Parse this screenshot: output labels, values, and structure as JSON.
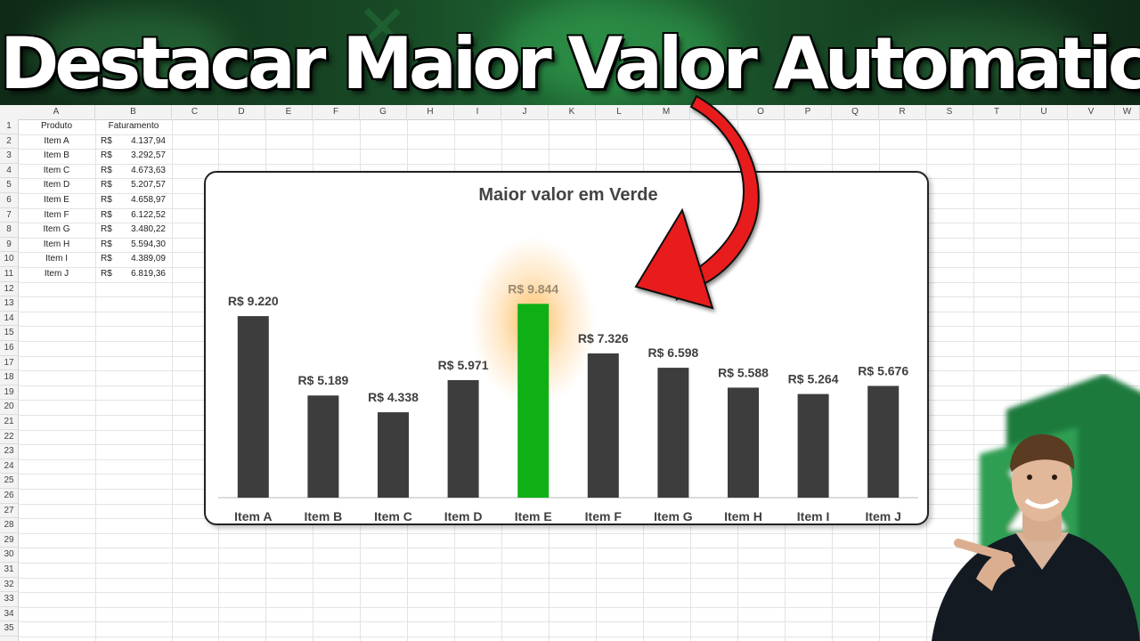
{
  "headline": "Destacar Maior Valor Automatico",
  "sheet": {
    "columns": [
      "A",
      "B",
      "C",
      "D",
      "E",
      "F",
      "G",
      "H",
      "I",
      "J",
      "K",
      "L",
      "M",
      "N",
      "O",
      "P",
      "Q",
      "R",
      "S",
      "T",
      "U",
      "V",
      "W"
    ],
    "rows": [
      "1",
      "2",
      "3",
      "4",
      "5",
      "6",
      "7",
      "8",
      "9",
      "10",
      "11",
      "12",
      "13",
      "14",
      "15",
      "16",
      "17",
      "18",
      "19",
      "20",
      "21",
      "22",
      "23",
      "24",
      "25",
      "26",
      "27",
      "28",
      "29",
      "30",
      "31",
      "32",
      "33",
      "34",
      "35"
    ],
    "header_product": "Produto",
    "header_revenue": "Faturamento",
    "currency": "R$",
    "table": [
      {
        "product": "Item A",
        "value": "4.137,94"
      },
      {
        "product": "Item B",
        "value": "3.292,57"
      },
      {
        "product": "Item C",
        "value": "4.673,63"
      },
      {
        "product": "Item D",
        "value": "5.207,57"
      },
      {
        "product": "Item E",
        "value": "4.658,97"
      },
      {
        "product": "Item F",
        "value": "6.122,52"
      },
      {
        "product": "Item G",
        "value": "3.480,22"
      },
      {
        "product": "Item H",
        "value": "5.594,30"
      },
      {
        "product": "Item I",
        "value": "4.389,09"
      },
      {
        "product": "Item J",
        "value": "6.819,36"
      }
    ]
  },
  "chart_data": {
    "type": "bar",
    "title": "Maior valor em Verde",
    "categories": [
      "Item A",
      "Item B",
      "Item C",
      "Item D",
      "Item E",
      "Item F",
      "Item G",
      "Item H",
      "Item I",
      "Item J"
    ],
    "values": [
      9220,
      5189,
      4338,
      5971,
      9844,
      7326,
      6598,
      5588,
      5264,
      5676
    ],
    "data_labels": [
      "R$ 9.220",
      "R$ 5.189",
      "R$ 4.338",
      "R$ 5.971",
      "R$ 9.844",
      "R$ 7.326",
      "R$ 6.598",
      "R$ 5.588",
      "R$ 5.264",
      "R$ 5.676"
    ],
    "highlight_index": 4,
    "ylim": [
      0,
      10000
    ],
    "grid": false,
    "legend": "none",
    "colors": {
      "default": "#3d3d3d",
      "highlight": "#0eb016",
      "glow": "#ffb347"
    }
  },
  "colors": {
    "arrow": "#e81c1c",
    "banner": "#184a26"
  }
}
